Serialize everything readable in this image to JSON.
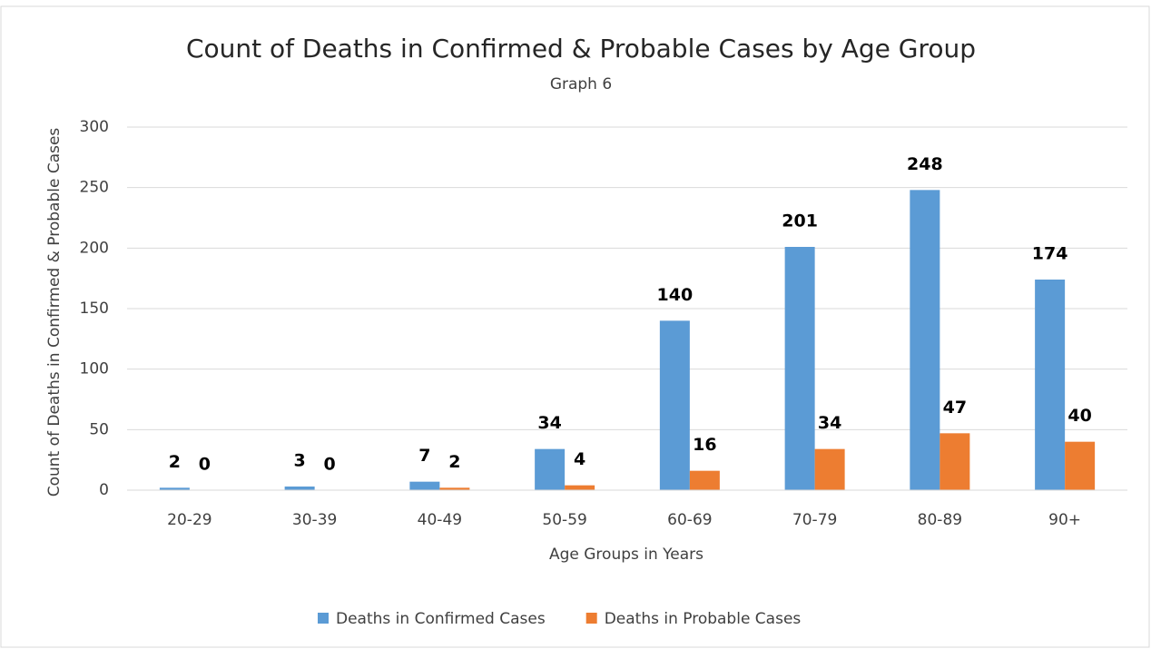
{
  "chart_data": {
    "type": "bar",
    "title": "Count of Deaths in Confirmed & Probable Cases by Age Group",
    "subtitle": "Graph 6",
    "x_label": "Age Groups in Years",
    "y_label": "Count of Deaths in Confirmed & Probable Cases",
    "categories": [
      "20-29",
      "30-39",
      "40-49",
      "50-59",
      "60-69",
      "70-79",
      "80-89",
      "90+"
    ],
    "series": [
      {
        "name": "Deaths in Confirmed Cases",
        "color": "#5b9bd5",
        "values": [
          2,
          3,
          7,
          34,
          140,
          201,
          248,
          174
        ]
      },
      {
        "name": "Deaths in Probable Cases",
        "color": "#ed7d31",
        "values": [
          0,
          0,
          2,
          4,
          16,
          34,
          47,
          40
        ]
      }
    ],
    "ylim": [
      0,
      300
    ],
    "yticks": [
      0,
      50,
      100,
      150,
      200,
      250,
      300
    ],
    "grid": true,
    "legend": "bottom"
  }
}
